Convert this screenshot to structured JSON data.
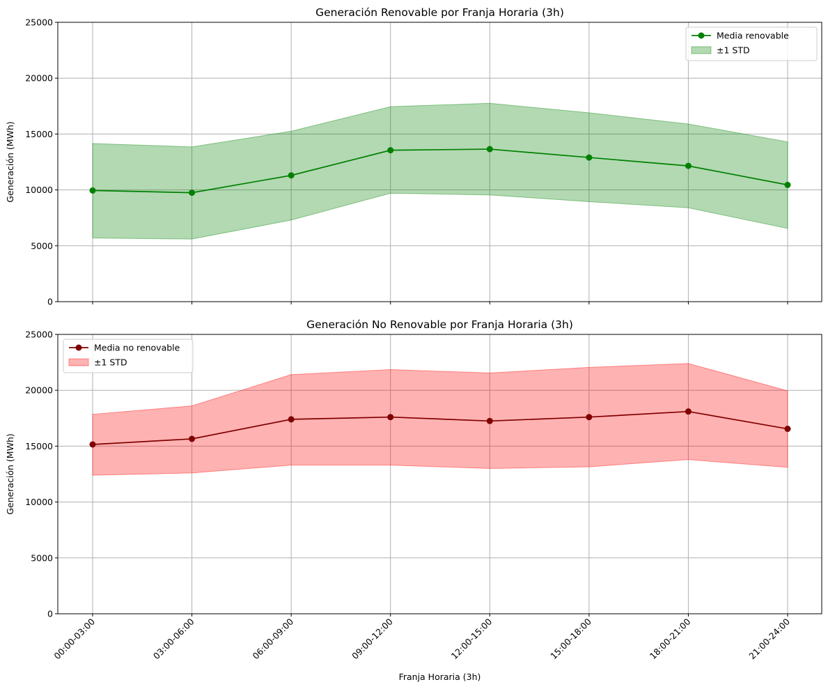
{
  "chart_data": [
    {
      "type": "line",
      "title": "Generación Renovable por Franja Horaria (3h)",
      "xlabel": "",
      "ylabel": "Generación (MWh)",
      "ylim": [
        0,
        25000
      ],
      "yticks": [
        0,
        5000,
        10000,
        15000,
        20000,
        25000
      ],
      "grid": true,
      "legend_position": "top-right",
      "categories": [
        "00:00-03:00",
        "03:00-06:00",
        "06:00-09:00",
        "09:00-12:00",
        "12:00-15:00",
        "15:00-18:00",
        "18:00-21:00",
        "21:00-24:00"
      ],
      "show_xtick_labels": false,
      "series": [
        {
          "name": "Media renovable",
          "values": [
            9950,
            9750,
            11300,
            13550,
            13650,
            12900,
            12150,
            10450
          ],
          "color": "#008000",
          "marker": "circle"
        }
      ],
      "band": {
        "name": "±1 STD",
        "upper": [
          14150,
          13850,
          15250,
          17450,
          17750,
          16900,
          15900,
          14300
        ],
        "lower": [
          5700,
          5600,
          7300,
          9700,
          9550,
          8950,
          8400,
          6550
        ],
        "color": "#008000",
        "opacity": 0.3
      }
    },
    {
      "type": "line",
      "title": "Generación No Renovable por Franja Horaria (3h)",
      "xlabel": "Franja Horaria (3h)",
      "ylabel": "Generación (MWh)",
      "ylim": [
        0,
        25000
      ],
      "yticks": [
        0,
        5000,
        10000,
        15000,
        20000,
        25000
      ],
      "grid": true,
      "legend_position": "top-left",
      "categories": [
        "00:00-03:00",
        "03:00-06:00",
        "06:00-09:00",
        "09:00-12:00",
        "12:00-15:00",
        "15:00-18:00",
        "18:00-21:00",
        "21:00-24:00"
      ],
      "show_xtick_labels": true,
      "series": [
        {
          "name": "Media no renovable",
          "values": [
            15150,
            15650,
            17400,
            17600,
            17250,
            17600,
            18100,
            16550
          ],
          "color": "#800000",
          "marker": "circle"
        }
      ],
      "band": {
        "name": "±1 STD",
        "upper": [
          17850,
          18600,
          21400,
          21850,
          21550,
          22050,
          22400,
          19950
        ],
        "lower": [
          12400,
          12600,
          13300,
          13300,
          13000,
          13150,
          13800,
          13100
        ],
        "color": "#ff0000",
        "opacity": 0.3
      }
    }
  ]
}
